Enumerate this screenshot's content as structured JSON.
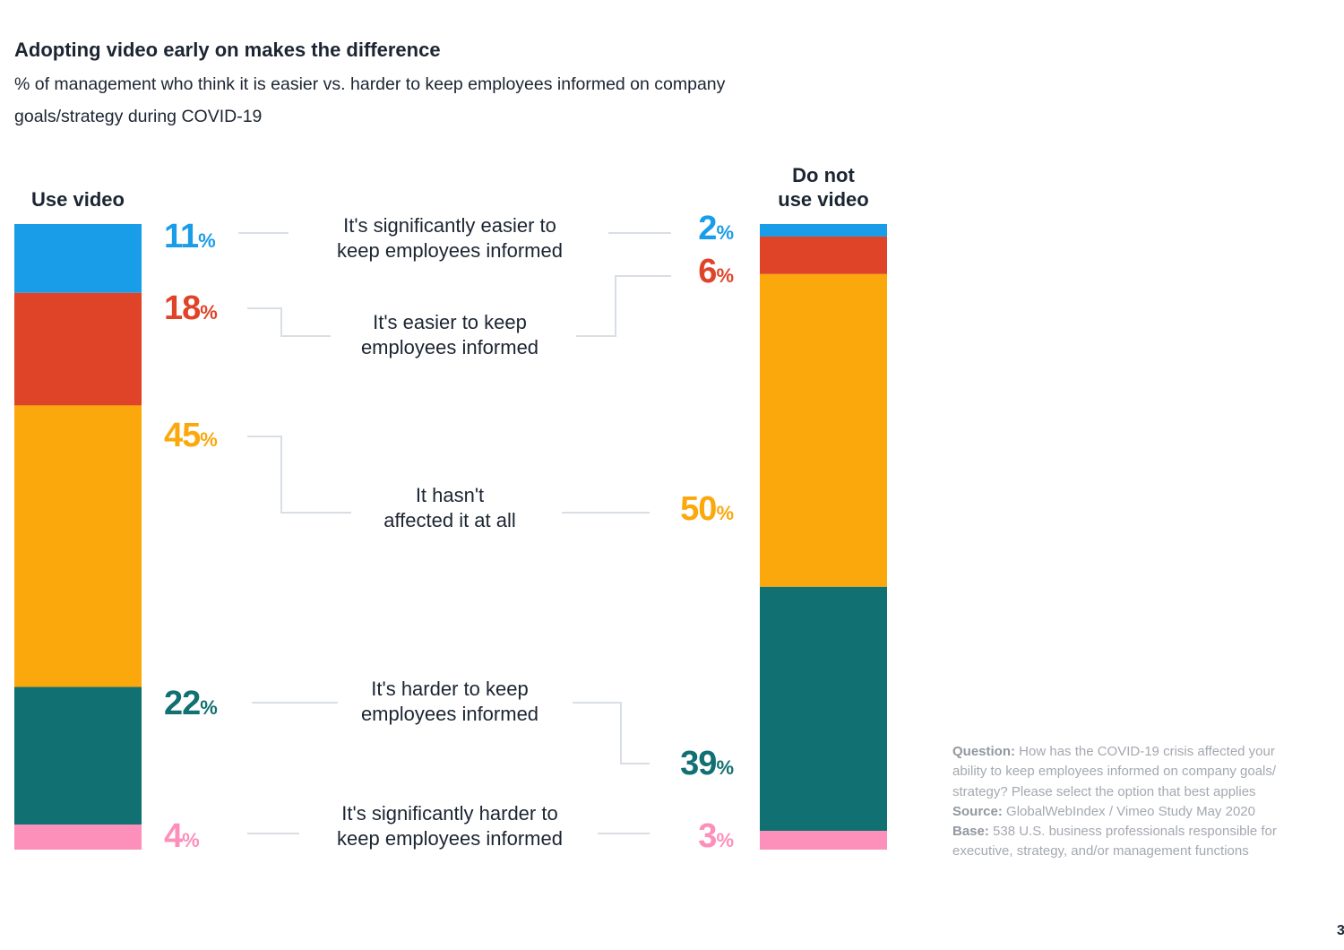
{
  "header": {
    "title": "Adopting video early on makes the difference",
    "subtitle": "% of management who think it is easier vs. harder to keep employees informed on company goals/strategy during COVID-19"
  },
  "chart_data": {
    "type": "bar",
    "stacked": true,
    "title": "Adopting video early on makes the difference",
    "subtitle": "% of management who think it is easier vs. harder to keep employees informed on company goals/strategy during COVID-19",
    "groups": [
      "Use video",
      "Do not use video"
    ],
    "categories": [
      "It's significantly easier to keep employees informed",
      "It's easier to keep employees informed",
      "It hasn't affected it at all",
      "It's harder to keep employees informed",
      "It's significantly harder to keep employees informed"
    ],
    "category_lines": [
      [
        "It's significantly easier to",
        "keep employees informed"
      ],
      [
        "It's easier to keep",
        "employees informed"
      ],
      [
        "It hasn't",
        "affected it at all"
      ],
      [
        "It's harder to keep",
        "employees informed"
      ],
      [
        "It's significantly harder to",
        "keep employees informed"
      ]
    ],
    "colors": [
      "#1a9de8",
      "#e04428",
      "#fba80c",
      "#117071",
      "#fd8fbb"
    ],
    "series": [
      {
        "name": "Use video",
        "values": [
          11,
          18,
          45,
          22,
          4
        ]
      },
      {
        "name": "Do not use video",
        "values": [
          2,
          6,
          50,
          39,
          3
        ]
      }
    ],
    "value_suffix": "%",
    "ylim": [
      0,
      100
    ]
  },
  "bars": {
    "left_label_lines": [
      "Use video"
    ],
    "right_label_lines": [
      "Do not",
      "use video"
    ]
  },
  "note": {
    "question_label": "Question:",
    "question_text": "How has the COVID-19 crisis affected your ability to keep employees informed on company goals/ strategy? Please select the option that best applies",
    "source_label": "Source:",
    "source_text": "GlobalWebIndex / Vimeo Study May 2020",
    "base_label": "Base:",
    "base_text": "538 U.S. business professionals responsible for executive, strategy, and/or management functions"
  },
  "page_number": "3"
}
